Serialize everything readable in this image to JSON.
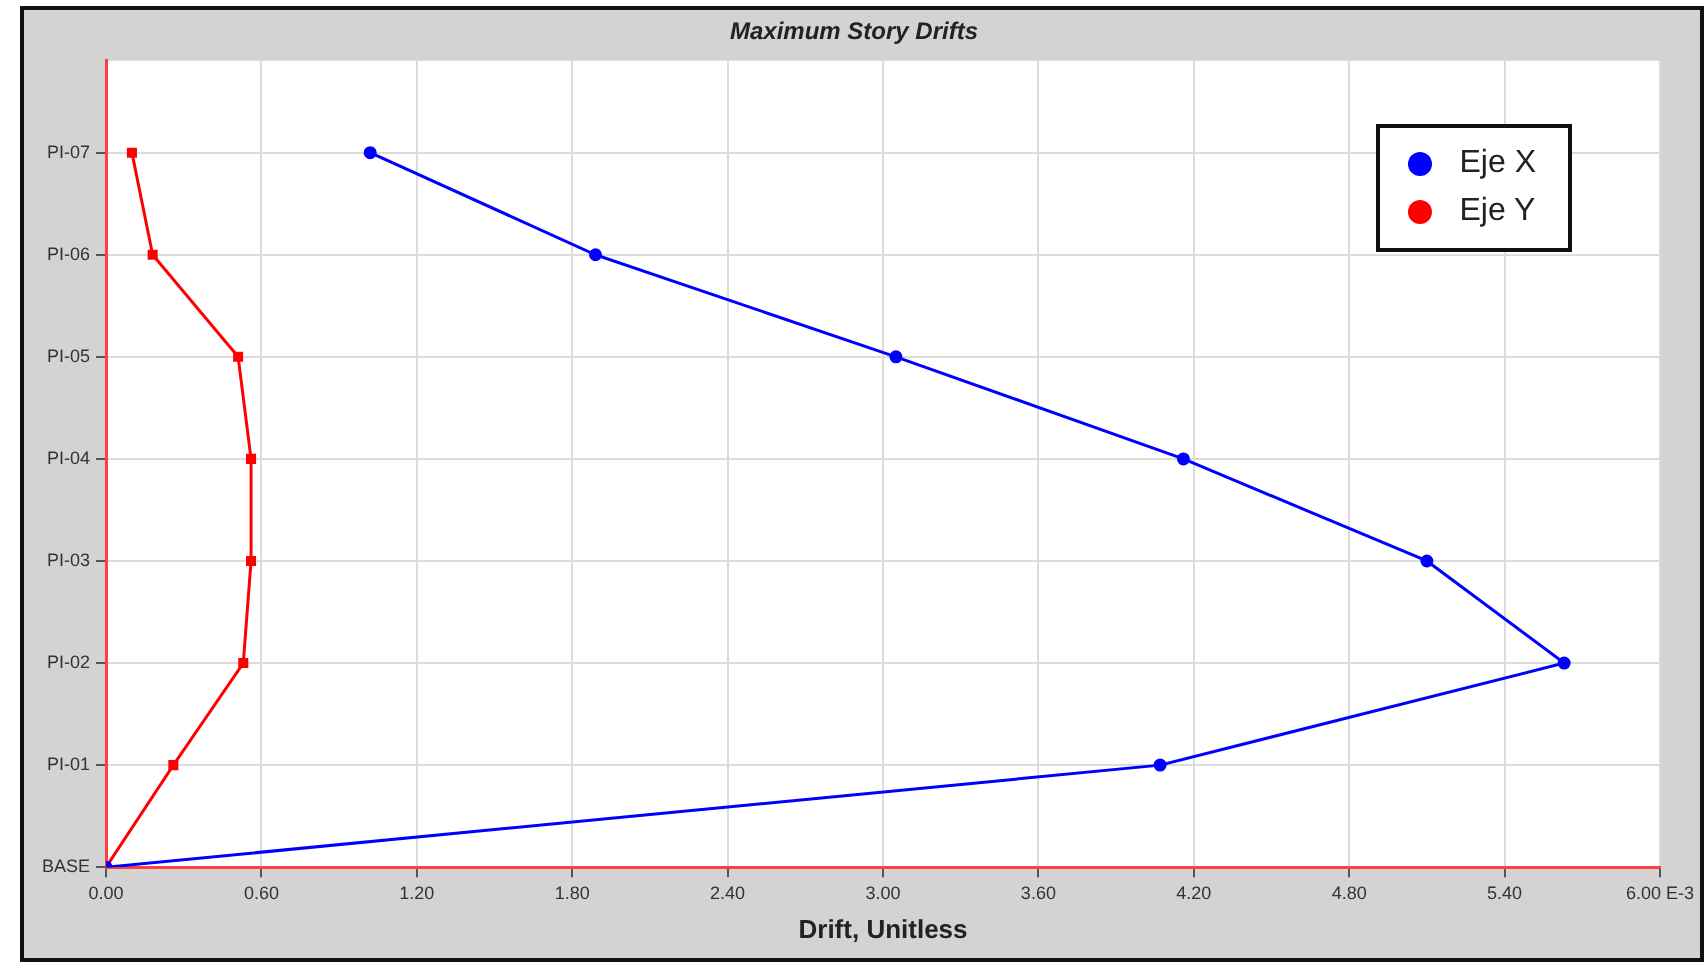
{
  "chart_data": {
    "type": "line",
    "title": "Maximum Story Drifts",
    "xlabel": "Drift, Unitless",
    "orientation": "horizontal",
    "categories": [
      "PI-07",
      "PI-06",
      "PI-05",
      "PI-04",
      "PI-03",
      "PI-02",
      "PI-01",
      "BASE"
    ],
    "series": [
      {
        "name": "Eje X",
        "color": "#0000ff",
        "marker": "circle",
        "values": [
          1.02,
          1.89,
          3.05,
          4.16,
          5.1,
          5.63,
          4.07,
          0
        ]
      },
      {
        "name": "Eje Y",
        "color": "#ff0000",
        "marker": "square",
        "values": [
          0.1,
          0.18,
          0.51,
          0.56,
          0.56,
          0.53,
          0.26,
          0
        ]
      }
    ],
    "xlim": [
      0,
      6
    ],
    "xticks": [
      {
        "value": 0,
        "label": "0.00"
      },
      {
        "value": 0.6,
        "label": "0.60"
      },
      {
        "value": 1.2,
        "label": "1.20"
      },
      {
        "value": 1.8,
        "label": "1.80"
      },
      {
        "value": 2.4,
        "label": "2.40"
      },
      {
        "value": 3,
        "label": "3.00"
      },
      {
        "value": 3.6,
        "label": "3.60"
      },
      {
        "value": 4.2,
        "label": "4.20"
      },
      {
        "value": 4.8,
        "label": "4.80"
      },
      {
        "value": 5.4,
        "label": "5.40"
      },
      {
        "value": 6,
        "label": "6.00 E-3"
      }
    ],
    "grid": true,
    "legend": "top right"
  }
}
